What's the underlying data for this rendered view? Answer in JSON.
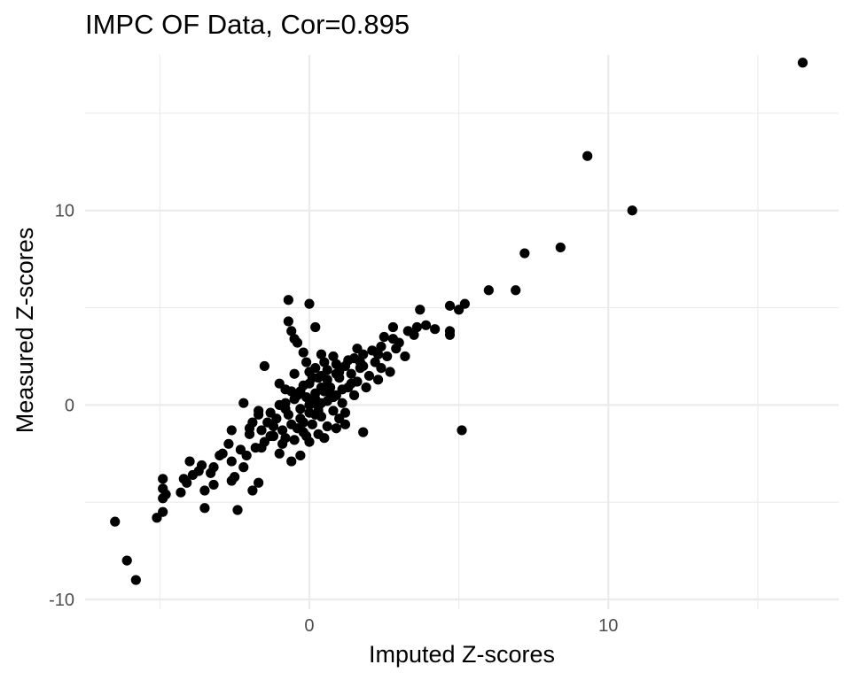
{
  "chart_data": {
    "type": "scatter",
    "title": "IMPC OF Data, Cor=0.895",
    "xlabel": "Imputed Z-scores",
    "ylabel": "Measured Z-scores",
    "xlim": [
      -7.5,
      17.7
    ],
    "ylim": [
      -10.5,
      18.0
    ],
    "x_ticks": [
      {
        "value": 0,
        "label": "0"
      },
      {
        "value": 10,
        "label": "10"
      }
    ],
    "x_minor": [
      -5,
      5,
      15
    ],
    "y_ticks": [
      {
        "value": -10,
        "label": "-10"
      },
      {
        "value": 0,
        "label": "0"
      },
      {
        "value": 10,
        "label": "10"
      }
    ],
    "y_minor": [
      -5,
      5,
      15
    ],
    "grid": true,
    "point_color": "#000000",
    "series": [
      {
        "points": [
          [
            16.5,
            17.6
          ],
          [
            9.3,
            12.8
          ],
          [
            10.8,
            10.0
          ],
          [
            8.4,
            8.1
          ],
          [
            7.2,
            7.8
          ],
          [
            6.0,
            5.9
          ],
          [
            6.9,
            5.9
          ],
          [
            5.2,
            5.2
          ],
          [
            4.7,
            5.1
          ],
          [
            5.0,
            4.9
          ],
          [
            3.7,
            4.9
          ],
          [
            3.9,
            4.1
          ],
          [
            3.6,
            4.0
          ],
          [
            3.3,
            3.8
          ],
          [
            4.7,
            3.6
          ],
          [
            4.2,
            3.9
          ],
          [
            2.8,
            4.0
          ],
          [
            2.5,
            3.5
          ],
          [
            3.0,
            3.2
          ],
          [
            4.7,
            3.8
          ],
          [
            -0.7,
            5.4
          ],
          [
            0.0,
            5.2
          ],
          [
            -0.7,
            4.3
          ],
          [
            0.2,
            4.0
          ],
          [
            -0.6,
            3.8
          ],
          [
            -0.4,
            3.2
          ],
          [
            -0.5,
            3.4
          ],
          [
            -0.2,
            2.7
          ],
          [
            -1.5,
            2.0
          ],
          [
            -1.0,
            1.1
          ],
          [
            -2.2,
            0.1
          ],
          [
            -1.7,
            -0.3
          ],
          [
            5.1,
            -1.3
          ],
          [
            1.8,
            -1.4
          ],
          [
            1.2,
            -1.0
          ],
          [
            -3.5,
            -5.3
          ],
          [
            -2.4,
            -5.4
          ],
          [
            -4.9,
            -5.5
          ],
          [
            -5.1,
            -5.8
          ],
          [
            -6.5,
            -6.0
          ],
          [
            -6.1,
            -8.0
          ],
          [
            -5.8,
            -9.0
          ],
          [
            -4.9,
            -4.8
          ],
          [
            -4.8,
            -4.6
          ],
          [
            -4.9,
            -4.3
          ],
          [
            -4.9,
            -3.8
          ],
          [
            -4.3,
            -4.5
          ],
          [
            -3.5,
            -4.4
          ],
          [
            -3.2,
            -4.1
          ],
          [
            -3.2,
            -3.2
          ],
          [
            -4.2,
            -3.8
          ],
          [
            -3.9,
            -3.6
          ],
          [
            -3.6,
            -3.1
          ],
          [
            -4.0,
            -2.9
          ],
          [
            -2.5,
            -3.7
          ],
          [
            -1.7,
            -4.0
          ],
          [
            -1.9,
            -4.4
          ],
          [
            -2.6,
            -2.9
          ],
          [
            -2.9,
            -2.5
          ],
          [
            -2.3,
            -2.3
          ],
          [
            -2.6,
            -1.3
          ],
          [
            -1.6,
            -2.2
          ],
          [
            -1.3,
            -1.6
          ],
          [
            -1.9,
            -0.9
          ],
          [
            -1.3,
            -0.4
          ],
          [
            -0.8,
            -0.2
          ],
          [
            -0.5,
            0.3
          ],
          [
            -0.3,
            0.7
          ],
          [
            0.0,
            1.1
          ],
          [
            0.3,
            1.4
          ],
          [
            0.6,
            1.8
          ],
          [
            0.9,
            2.1
          ],
          [
            1.2,
            2.0
          ],
          [
            1.5,
            2.4
          ],
          [
            1.8,
            2.6
          ],
          [
            2.1,
            2.8
          ],
          [
            2.4,
            3.0
          ],
          [
            2.0,
            1.5
          ],
          [
            1.6,
            1.2
          ],
          [
            1.3,
            0.9
          ],
          [
            0.9,
            0.5
          ],
          [
            0.6,
            0.2
          ],
          [
            0.3,
            -0.1
          ],
          [
            0.0,
            -0.4
          ],
          [
            -0.3,
            -0.7
          ],
          [
            -0.6,
            -1.0
          ],
          [
            -0.9,
            -1.3
          ],
          [
            -1.2,
            -1.6
          ],
          [
            -1.5,
            -1.9
          ],
          [
            -1.8,
            -2.2
          ],
          [
            -2.1,
            -2.6
          ],
          [
            -0.6,
            -2.9
          ],
          [
            -0.3,
            -2.6
          ],
          [
            0.5,
            -1.7
          ],
          [
            0.9,
            -1.2
          ],
          [
            0.7,
            0.6
          ],
          [
            0.4,
            0.9
          ],
          [
            0.1,
            1.4
          ],
          [
            -0.2,
            1.0
          ],
          [
            0.6,
            1.3
          ],
          [
            1.0,
            1.7
          ],
          [
            1.3,
            2.3
          ],
          [
            1.7,
            1.9
          ],
          [
            2.2,
            2.2
          ],
          [
            2.6,
            2.5
          ],
          [
            2.9,
            2.9
          ],
          [
            3.2,
            2.5
          ],
          [
            2.7,
            1.7
          ],
          [
            2.3,
            1.3
          ],
          [
            1.9,
            0.9
          ],
          [
            1.5,
            0.5
          ],
          [
            1.1,
            0.1
          ],
          [
            0.8,
            -0.3
          ],
          [
            0.4,
            -0.6
          ],
          [
            0.1,
            -1.0
          ],
          [
            -0.2,
            -1.4
          ],
          [
            -0.5,
            -1.8
          ],
          [
            -0.9,
            -2.0
          ],
          [
            -1.1,
            -0.7
          ],
          [
            -0.8,
            0.1
          ],
          [
            -0.4,
            0.5
          ],
          [
            0.2,
            0.3
          ],
          [
            0.5,
            0.7
          ],
          [
            0.2,
            1.9
          ],
          [
            -0.1,
            2.2
          ],
          [
            0.4,
            2.6
          ],
          [
            0.8,
            2.5
          ],
          [
            1.4,
            1.1
          ],
          [
            1.2,
            -0.4
          ],
          [
            0.3,
            -1.5
          ],
          [
            -1.4,
            -0.9
          ],
          [
            -2.0,
            -1.5
          ],
          [
            -1.0,
            -2.5
          ],
          [
            -2.7,
            -2.0
          ],
          [
            -2.2,
            -3.2
          ],
          [
            -3.0,
            -2.6
          ],
          [
            -3.3,
            -3.5
          ],
          [
            -2.0,
            -1.2
          ],
          [
            -1.7,
            -0.5
          ],
          [
            -0.7,
            -0.5
          ],
          [
            0.0,
            0.0
          ],
          [
            0.2,
            0.6
          ],
          [
            -0.1,
            0.4
          ],
          [
            0.3,
            -0.3
          ],
          [
            0.6,
            1.0
          ],
          [
            1.0,
            1.4
          ],
          [
            1.4,
            1.6
          ],
          [
            1.8,
            2.0
          ],
          [
            2.3,
            2.6
          ],
          [
            1.1,
            0.8
          ],
          [
            0.7,
            0.9
          ],
          [
            -0.5,
            1.6
          ],
          [
            -0.3,
            -0.2
          ],
          [
            -1.0,
            0.0
          ],
          [
            -0.6,
            0.7
          ],
          [
            0.0,
            1.7
          ],
          [
            0.5,
            2.2
          ],
          [
            1.6,
            2.9
          ],
          [
            2.4,
            1.9
          ],
          [
            1.0,
            -0.7
          ],
          [
            0.6,
            -1.1
          ],
          [
            -0.4,
            -1.2
          ],
          [
            -1.2,
            -1.1
          ],
          [
            -1.6,
            -1.3
          ],
          [
            -0.2,
            -0.9
          ],
          [
            0.2,
            -0.5
          ],
          [
            0.4,
            0.1
          ],
          [
            0.8,
            0.4
          ],
          [
            -2.6,
            -3.9
          ],
          [
            -3.7,
            -3.4
          ],
          [
            -4.1,
            -4.0
          ],
          [
            -0.8,
            0.8
          ],
          [
            0.0,
            -1.9
          ],
          [
            0.9,
            1.6
          ],
          [
            1.7,
            2.2
          ],
          [
            2.8,
            3.4
          ],
          [
            3.5,
            3.6
          ],
          [
            0.4,
            1.5
          ],
          [
            -0.1,
            -1.6
          ],
          [
            -0.8,
            -1.7
          ]
        ]
      }
    ]
  }
}
